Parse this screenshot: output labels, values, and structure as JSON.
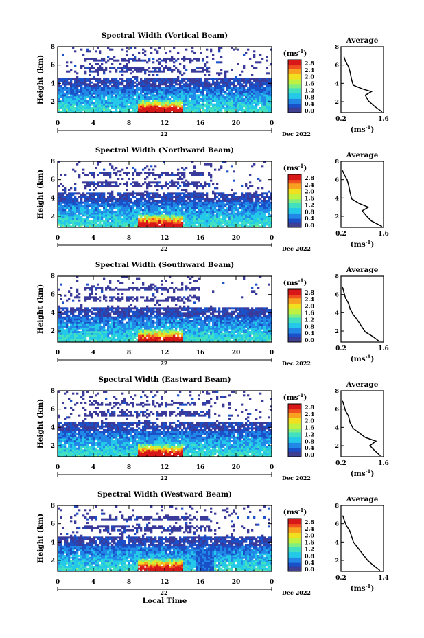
{
  "figure": {
    "y_axis_label": "Height (km)",
    "x_axis_label": "Local Time",
    "date_label": "Dec 2022",
    "day_label": "22",
    "colorbar_unit": "(ms",
    "colorbar_unit_exp": "-1",
    "colorbar_unit_close": ")",
    "average_title": "Average",
    "average_unit": "(ms",
    "average_unit_exp": "-1",
    "average_unit_close": ")"
  },
  "colors": {
    "colormap": [
      "#3a3a9a",
      "#1a50c8",
      "#2288e8",
      "#24c8e8",
      "#40e0c0",
      "#80ee80",
      "#c0f040",
      "#f0e020",
      "#f8a020",
      "#f05020",
      "#d81818"
    ]
  },
  "chart_data": [
    {
      "type": "heatmap",
      "title": "Spectral Width (Vertical Beam)",
      "xlabel": "Local Time",
      "ylabel": "Height (km)",
      "xlim": [
        0,
        24
      ],
      "ylim": [
        0.8,
        8
      ],
      "xticks": [
        "0",
        "4",
        "8",
        "12",
        "16",
        "20",
        "0"
      ],
      "yticks": [
        "2",
        "4",
        "6",
        "8"
      ],
      "colorbar_ticks": [
        "0.0",
        "0.4",
        "0.8",
        "1.2",
        "1.6",
        "2.0",
        "2.4",
        "2.8"
      ],
      "colorbar_range": [
        0,
        3
      ],
      "average": {
        "title": "Average",
        "xticks": [
          "0.2",
          "1.6"
        ],
        "xlim": [
          0.2,
          1.6
        ],
        "ylim": [
          0.8,
          8
        ],
        "profile": [
          [
            1.55,
            0.9
          ],
          [
            1.3,
            1.5
          ],
          [
            1.1,
            2.1
          ],
          [
            1.0,
            2.7
          ],
          [
            1.2,
            3.1
          ],
          [
            0.9,
            3.4
          ],
          [
            0.6,
            3.8
          ],
          [
            0.55,
            4.4
          ],
          [
            0.5,
            5.2
          ],
          [
            0.45,
            5.8
          ],
          [
            0.35,
            6.4
          ],
          [
            0.3,
            6.9
          ]
        ]
      }
    },
    {
      "type": "heatmap",
      "title": "Spectral Width (Northward Beam)",
      "xlabel": "Local Time",
      "ylabel": "Height (km)",
      "xlim": [
        0,
        24
      ],
      "ylim": [
        0.8,
        8
      ],
      "xticks": [
        "0",
        "4",
        "8",
        "12",
        "16",
        "20",
        "0"
      ],
      "yticks": [
        "2",
        "4",
        "6",
        "8"
      ],
      "colorbar_ticks": [
        "0.0",
        "0.4",
        "0.8",
        "1.2",
        "1.6",
        "2.0",
        "2.4",
        "2.8"
      ],
      "colorbar_range": [
        0,
        3
      ],
      "average": {
        "title": "Average",
        "xticks": [
          "0.2",
          "1.6"
        ],
        "xlim": [
          0.2,
          1.6
        ],
        "ylim": [
          0.8,
          8
        ],
        "profile": [
          [
            1.55,
            0.9
          ],
          [
            1.2,
            1.5
          ],
          [
            1.05,
            2.0
          ],
          [
            0.9,
            2.6
          ],
          [
            1.1,
            3.0
          ],
          [
            0.8,
            3.4
          ],
          [
            0.55,
            3.9
          ],
          [
            0.5,
            4.6
          ],
          [
            0.45,
            5.4
          ],
          [
            0.4,
            6.0
          ],
          [
            0.3,
            6.6
          ],
          [
            0.25,
            7.0
          ]
        ]
      }
    },
    {
      "type": "heatmap",
      "title": "Spectral Width (Southward Beam)",
      "xlabel": "Local Time",
      "ylabel": "Height (km)",
      "xlim": [
        0,
        24
      ],
      "ylim": [
        0.8,
        8
      ],
      "xticks": [
        "0",
        "4",
        "8",
        "12",
        "16",
        "20",
        "0"
      ],
      "yticks": [
        "2",
        "4",
        "6",
        "8"
      ],
      "colorbar_ticks": [
        "0.0",
        "0.4",
        "0.8",
        "1.2",
        "1.6",
        "2.0",
        "2.4",
        "2.8"
      ],
      "colorbar_range": [
        0,
        3
      ],
      "average": {
        "title": "Average",
        "xticks": [
          "0.2",
          "1.6"
        ],
        "xlim": [
          0.2,
          1.6
        ],
        "ylim": [
          0.8,
          8
        ],
        "profile": [
          [
            1.45,
            0.9
          ],
          [
            1.25,
            1.4
          ],
          [
            1.0,
            1.9
          ],
          [
            0.9,
            2.4
          ],
          [
            0.8,
            2.9
          ],
          [
            0.7,
            3.4
          ],
          [
            0.6,
            3.8
          ],
          [
            0.5,
            4.4
          ],
          [
            0.45,
            5.0
          ],
          [
            0.35,
            5.6
          ],
          [
            0.3,
            6.2
          ],
          [
            0.25,
            6.8
          ]
        ]
      }
    },
    {
      "type": "heatmap",
      "title": "Spectral Width (Eastward Beam)",
      "xlabel": "Local Time",
      "ylabel": "Height (km)",
      "xlim": [
        0,
        24
      ],
      "ylim": [
        0.8,
        8
      ],
      "xticks": [
        "0",
        "4",
        "8",
        "12",
        "16",
        "20",
        "0"
      ],
      "yticks": [
        "2",
        "4",
        "6",
        "8"
      ],
      "colorbar_ticks": [
        "0.0",
        "0.4",
        "0.8",
        "1.2",
        "1.6",
        "2.0",
        "2.4",
        "2.8"
      ],
      "colorbar_range": [
        0,
        3
      ],
      "average": {
        "title": "Average",
        "xticks": [
          "0.2",
          "1.6"
        ],
        "xlim": [
          0.2,
          1.6
        ],
        "ylim": [
          0.8,
          8
        ],
        "profile": [
          [
            1.5,
            0.9
          ],
          [
            1.3,
            1.5
          ],
          [
            1.15,
            2.0
          ],
          [
            1.35,
            2.5
          ],
          [
            1.0,
            2.9
          ],
          [
            0.8,
            3.4
          ],
          [
            0.6,
            3.9
          ],
          [
            0.5,
            4.5
          ],
          [
            0.45,
            5.2
          ],
          [
            0.35,
            5.8
          ],
          [
            0.3,
            6.4
          ],
          [
            0.25,
            6.9
          ]
        ]
      }
    },
    {
      "type": "heatmap",
      "title": "Spectral Width (Westward Beam)",
      "xlabel": "Local Time",
      "ylabel": "Height (km)",
      "xlim": [
        0,
        24
      ],
      "ylim": [
        0.8,
        8
      ],
      "xticks": [
        "0",
        "4",
        "8",
        "12",
        "16",
        "20",
        "0"
      ],
      "yticks": [
        "2",
        "4",
        "6",
        "8"
      ],
      "colorbar_ticks": [
        "0.0",
        "0.4",
        "0.8",
        "1.2",
        "1.6",
        "2.0",
        "2.4",
        "2.8"
      ],
      "colorbar_range": [
        0,
        3
      ],
      "average": {
        "title": "Average",
        "xticks": [
          "0.2",
          "1.4"
        ],
        "xlim": [
          0.2,
          1.4
        ],
        "ylim": [
          0.8,
          8
        ],
        "profile": [
          [
            1.3,
            0.9
          ],
          [
            1.1,
            1.5
          ],
          [
            0.95,
            2.0
          ],
          [
            0.85,
            2.5
          ],
          [
            0.75,
            3.0
          ],
          [
            0.65,
            3.5
          ],
          [
            0.55,
            4.0
          ],
          [
            0.5,
            4.6
          ],
          [
            0.45,
            5.2
          ],
          [
            0.35,
            5.8
          ],
          [
            0.3,
            6.3
          ],
          [
            0.25,
            6.9
          ]
        ]
      }
    }
  ]
}
